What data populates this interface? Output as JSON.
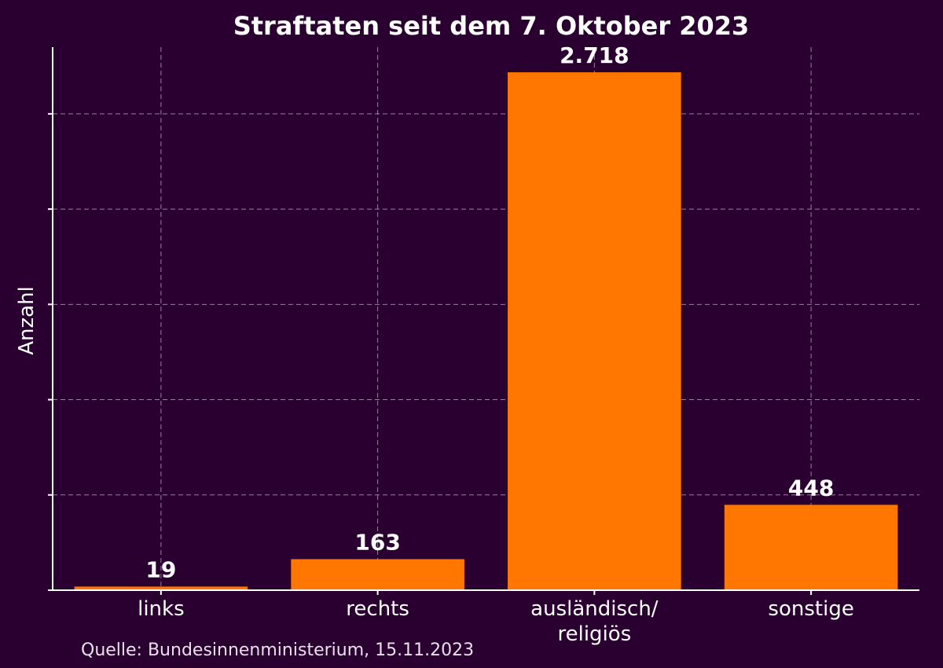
{
  "chart_data": {
    "type": "bar",
    "title": "Straftaten seit dem 7. Oktober 2023",
    "xlabel": "",
    "ylabel": "Anzahl",
    "categories": [
      "links",
      "rechts",
      "ausländisch/\nreligiös",
      "sonstige"
    ],
    "values": [
      19,
      163,
      2718,
      448
    ],
    "value_labels": [
      "19",
      "163",
      "2.718",
      "448"
    ],
    "ylim": [
      0,
      2850
    ],
    "y_ticks": [
      0,
      500,
      1000,
      1500,
      2000,
      2500
    ],
    "y_tick_labels_shown": false,
    "grid": true,
    "legend": "none",
    "bar_color": "#ff7700",
    "background_color": "#2a0030",
    "text_color": "#ffffff"
  },
  "source": "Quelle: Bundesinnenministerium, 15.11.2023"
}
